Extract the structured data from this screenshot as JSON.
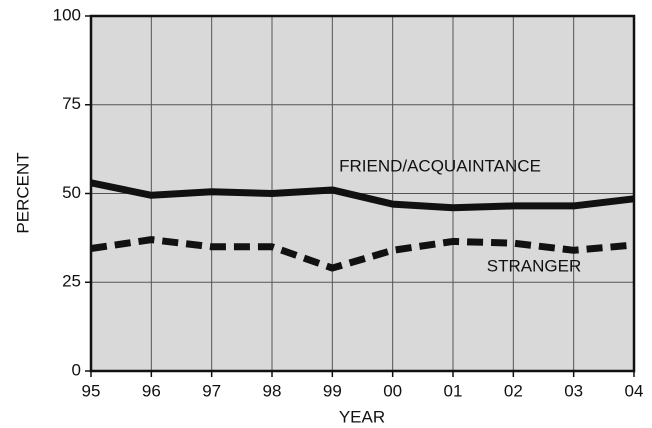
{
  "chart_data": {
    "type": "line",
    "x_label": "YEAR",
    "y_label": "PERCENT",
    "categories": [
      "95",
      "96",
      "97",
      "98",
      "99",
      "00",
      "01",
      "02",
      "03",
      "04"
    ],
    "series": [
      {
        "name": "FRIEND/ACQUAINTANCE",
        "color": "#111111",
        "dash": false,
        "values": [
          53,
          49.5,
          50.5,
          50,
          51,
          47,
          46,
          46.5,
          46.5,
          48.5
        ]
      },
      {
        "name": "STRANGER",
        "color": "#111111",
        "dash": true,
        "values": [
          34.5,
          37,
          35,
          35,
          29,
          34,
          36.5,
          36,
          34,
          35.5
        ]
      }
    ],
    "ylim": [
      0,
      100
    ],
    "yticks": [
      0,
      25,
      50,
      75,
      100
    ],
    "grid": true
  }
}
